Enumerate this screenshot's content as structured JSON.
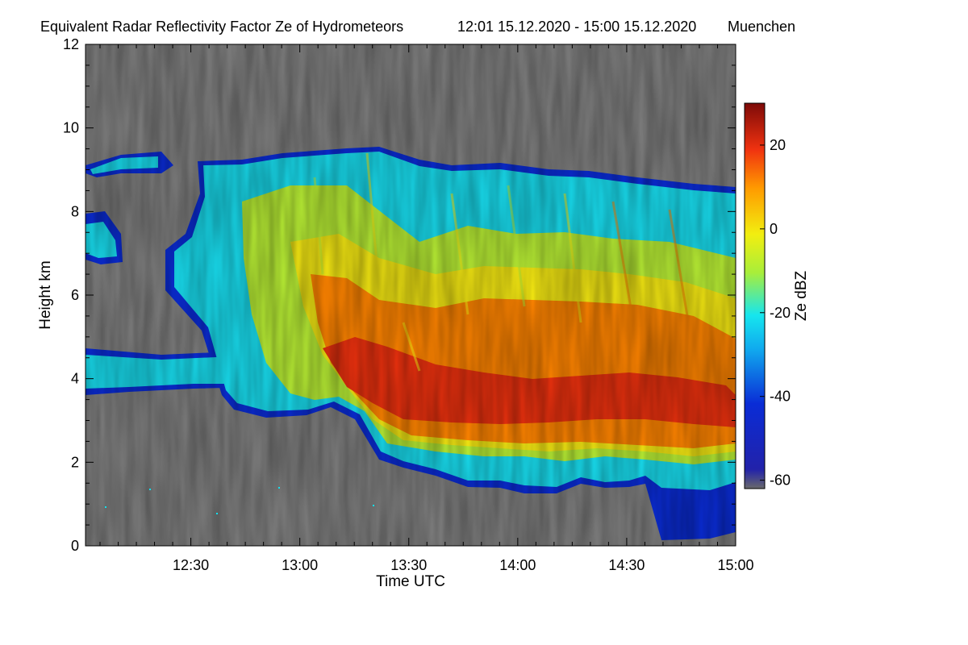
{
  "chart_data": {
    "type": "heatmap",
    "title": "Equivalent Radar Reflectivity Factor Ze of Hydrometeors",
    "period": "12:01 15.12.2020 - 15:00 15.12.2020",
    "location": "Muenchen",
    "xlabel": "Time UTC",
    "ylabel": "Height km",
    "xlim": [
      "12:01",
      "15:00"
    ],
    "ylim": [
      0,
      12
    ],
    "xticks": [
      "12:30",
      "13:00",
      "13:30",
      "14:00",
      "14:30",
      "15:00"
    ],
    "yticks": [
      0,
      2,
      4,
      6,
      8,
      10,
      12
    ],
    "colorbar": {
      "label": "Ze dBZ",
      "range": [
        -62,
        30
      ],
      "ticks": [
        -60,
        -40,
        -20,
        0,
        20
      ]
    },
    "colors": {
      "background": "#7f7f7f",
      "low": "#0a2cd6",
      "mid_low": "#16e6ee",
      "mid": "#f2ee10",
      "mid_high": "#ff7a00",
      "high": "#e3200e"
    },
    "structure": {
      "echo_top_km": [
        {
          "time": "12:01",
          "top": 8.6
        },
        {
          "time": "12:30",
          "top": 8.2
        },
        {
          "time": "12:55",
          "top": 9.0
        },
        {
          "time": "13:15",
          "top": 9.4
        },
        {
          "time": "13:45",
          "top": 8.9
        },
        {
          "time": "14:15",
          "top": 8.7
        },
        {
          "time": "14:45",
          "top": 8.6
        },
        {
          "time": "15:00",
          "top": 8.1
        }
      ],
      "core_ze_max_dbz": 18,
      "core_height_km": [
        3,
        4.5
      ],
      "low_level_layer_km": [
        3.6,
        4.7
      ]
    }
  }
}
